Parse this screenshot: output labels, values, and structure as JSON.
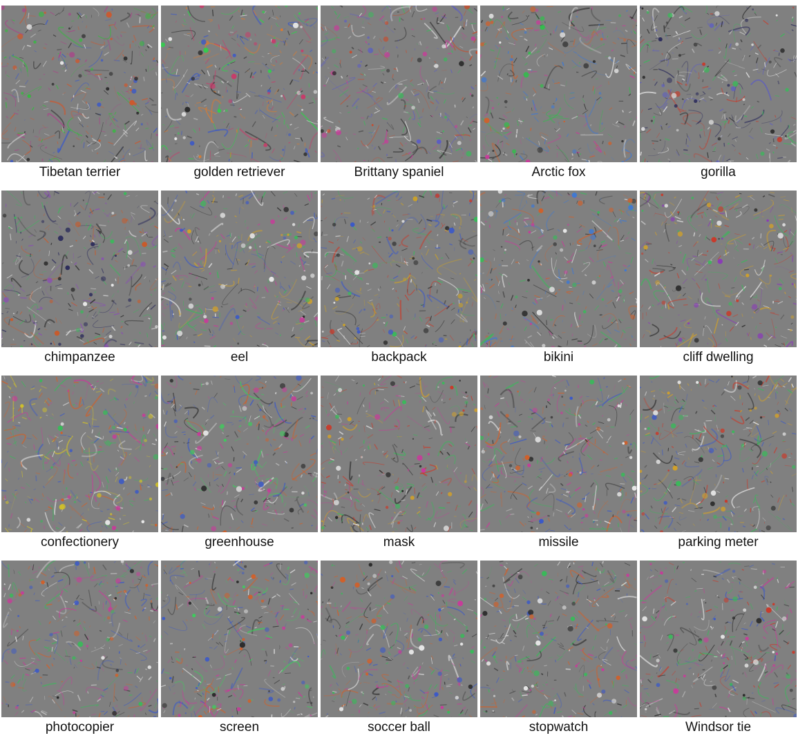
{
  "figure": {
    "background_gray": "#808080",
    "classes": [
      {
        "label": "Tibetan terrier",
        "palette": [
          "#d0562a",
          "#2fbf3a",
          "#3a58c8",
          "#e8e8e8",
          "#b03a8a",
          "#2a2a2a"
        ]
      },
      {
        "label": "golden retriever",
        "palette": [
          "#e07a2a",
          "#2fd04a",
          "#2a2a2a",
          "#e8e8e8",
          "#3a58c8",
          "#c83a6a"
        ]
      },
      {
        "label": "Brittany spaniel",
        "palette": [
          "#c84a2a",
          "#2a2a2a",
          "#e8e8e8",
          "#3ab85a",
          "#5a5ac8",
          "#c83a9a"
        ]
      },
      {
        "label": "Arctic fox",
        "palette": [
          "#e8e8e8",
          "#2a2a2a",
          "#3a78d8",
          "#d0602a",
          "#2fbf4a",
          "#c83a9a"
        ]
      },
      {
        "label": "gorilla",
        "palette": [
          "#2a2a5a",
          "#e8e8e8",
          "#c83a2a",
          "#3ab85a",
          "#5a5ac8",
          "#2a2a2a"
        ]
      },
      {
        "label": "chimpanzee",
        "palette": [
          "#2a2a5a",
          "#e8e8e8",
          "#3ab85a",
          "#c85a2a",
          "#8a4ab8",
          "#2a2a2a"
        ]
      },
      {
        "label": "eel",
        "palette": [
          "#e8e8e8",
          "#2a2a2a",
          "#3ab85a",
          "#c83a9a",
          "#d0a02a",
          "#3a58c8"
        ]
      },
      {
        "label": "backpack",
        "palette": [
          "#2a2a2a",
          "#e8e8e8",
          "#c83a2a",
          "#3a58c8",
          "#3ab85a",
          "#c8a02a"
        ]
      },
      {
        "label": "bikini",
        "palette": [
          "#c83a9a",
          "#3ab85a",
          "#e8e8e8",
          "#d0602a",
          "#2a2a2a",
          "#3a78d8"
        ]
      },
      {
        "label": "cliff dwelling",
        "palette": [
          "#c83a2a",
          "#3ab85a",
          "#e8e8e8",
          "#8a3ab8",
          "#2a2a2a",
          "#d0a02a"
        ]
      },
      {
        "label": "confectionery",
        "palette": [
          "#c83a9a",
          "#d0602a",
          "#3ab85a",
          "#3a58c8",
          "#e8e8e8",
          "#d0c02a"
        ]
      },
      {
        "label": "greenhouse",
        "palette": [
          "#3ad05a",
          "#c83a9a",
          "#3a58c8",
          "#e8e8e8",
          "#d0602a",
          "#2a2a2a"
        ]
      },
      {
        "label": "mask",
        "palette": [
          "#c83a2a",
          "#e8e8e8",
          "#2a2a2a",
          "#c83a9a",
          "#3ab85a",
          "#d0a02a"
        ]
      },
      {
        "label": "missile",
        "palette": [
          "#2a2a2a",
          "#e8e8e8",
          "#c83a9a",
          "#3ab85a",
          "#3a58c8",
          "#d0602a"
        ]
      },
      {
        "label": "parking meter",
        "palette": [
          "#2a2a2a",
          "#e8e8e8",
          "#3a58c8",
          "#c83a2a",
          "#3ab85a",
          "#d0a02a"
        ]
      },
      {
        "label": "photocopier",
        "palette": [
          "#2a2a2a",
          "#e8e8e8",
          "#3ab85a",
          "#c83a9a",
          "#d0602a",
          "#3a58c8"
        ]
      },
      {
        "label": "screen",
        "palette": [
          "#3ad05a",
          "#c83a9a",
          "#e8e8e8",
          "#2a2a2a",
          "#3a58c8",
          "#d0602a"
        ]
      },
      {
        "label": "soccer ball",
        "palette": [
          "#e8e8e8",
          "#2a2a2a",
          "#c83a9a",
          "#3ab85a",
          "#d0602a",
          "#3a58c8"
        ]
      },
      {
        "label": "stopwatch",
        "palette": [
          "#e8e8e8",
          "#2a2a2a",
          "#c83a9a",
          "#3ab85a",
          "#3a58c8",
          "#d0602a"
        ]
      },
      {
        "label": "Windsor tie",
        "palette": [
          "#c83a9a",
          "#c83a2a",
          "#e8e8e8",
          "#2a2a2a",
          "#3ab85a",
          "#3a58c8"
        ]
      }
    ]
  }
}
